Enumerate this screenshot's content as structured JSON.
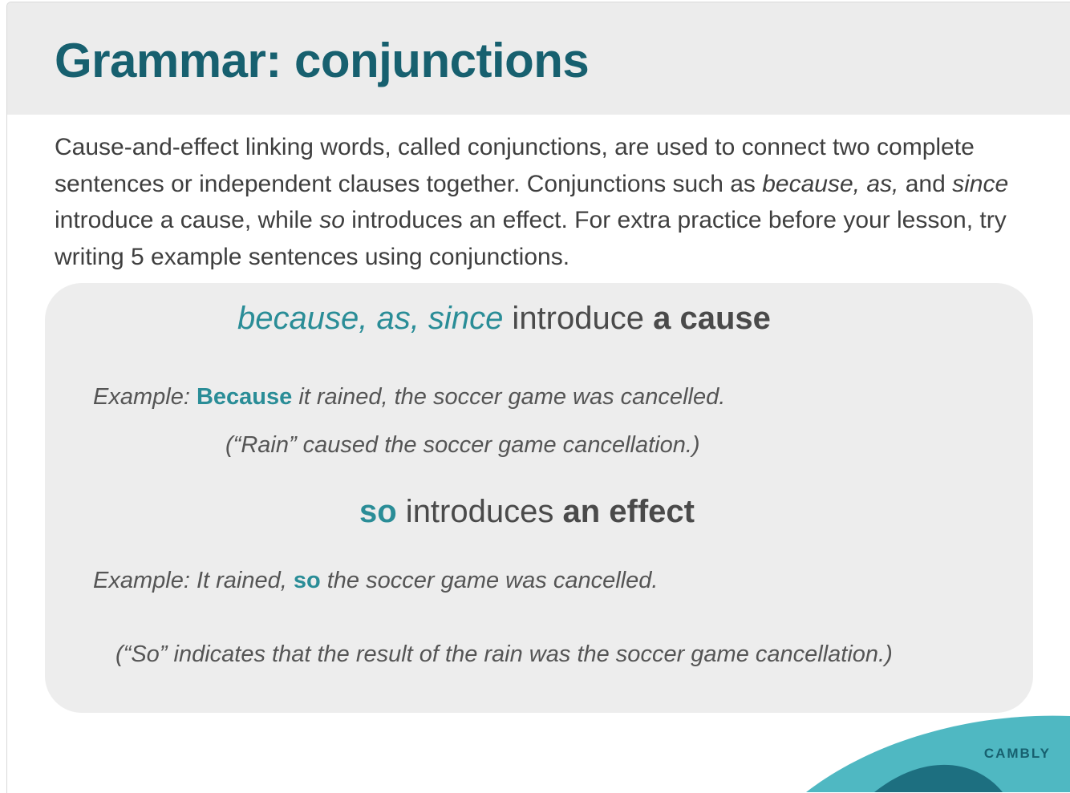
{
  "title": "Grammar: conjunctions",
  "intro": {
    "p1": "Cause-and-effect linking words, called conjunctions, are used to connect two complete sentences or independent clauses together. Conjunctions such as ",
    "w1": "because, as,",
    "p2": " and ",
    "w2": "since",
    "p3": " introduce a cause, while ",
    "w3": "so",
    "p4": " introduces an effect. For extra practice before your lesson, try writing 5 example sentences using conjunctions."
  },
  "box": {
    "cause_heading": {
      "keywords": "because, as, since",
      "middle": " introduce ",
      "emphasis": "a cause"
    },
    "example1": {
      "prefix": "Example: ",
      "keyword": "Because",
      "rest": " it rained, the soccer game was cancelled."
    },
    "note1": "(“Rain” caused the soccer game cancellation.)",
    "effect_heading": {
      "keyword": "so",
      "middle": " introduces ",
      "emphasis": "an effect"
    },
    "example2": {
      "prefix": "Example: It rained, ",
      "keyword": "so",
      "rest": " the soccer game was cancelled."
    },
    "note2": "(“So” indicates that the result of the rain was the soccer game cancellation.)"
  },
  "brand": "CAMBLY",
  "colors": {
    "title": "#17606f",
    "accent": "#2a8d97",
    "header_bg": "#ececec",
    "box_bg": "#ededed",
    "wave_light": "#4fb8c2",
    "wave_dark": "#1d6f80"
  }
}
